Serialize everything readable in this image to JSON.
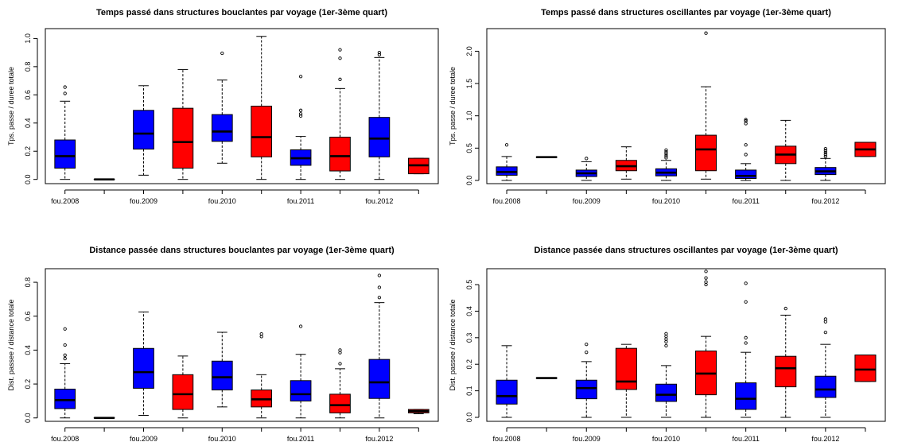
{
  "chart_data": [
    {
      "type": "boxplot",
      "title": "Temps passé dans structures bouclantes par voyage (1er-3ème quart)",
      "ylabel": "Tps. passe / duree totale",
      "ylim": [
        -0.03,
        1.07
      ],
      "yticks": [
        0.0,
        0.2,
        0.4,
        0.6,
        0.8,
        1.0
      ],
      "yticklabels": [
        "0.0",
        "0.2",
        "0.4",
        "0.6",
        "0.8",
        "1.0"
      ],
      "xticklabels": [
        "fou.2008",
        "",
        "fou.2009",
        "",
        "fou.2010",
        "",
        "fou.2011",
        "",
        "fou.2012",
        ""
      ],
      "boxes": [
        {
          "color": "#0000ff",
          "lw": 0.0,
          "q1": 0.08,
          "med": 0.165,
          "q3": 0.28,
          "uw": 0.555,
          "out": [
            0.61,
            0.655
          ]
        },
        {
          "color": "#0000ff",
          "lw": 0.0,
          "q1": 0.0,
          "med": 0.0,
          "q3": 0.0,
          "uw": 0.0,
          "out": []
        },
        {
          "color": "#0000ff",
          "lw": 0.03,
          "q1": 0.215,
          "med": 0.325,
          "q3": 0.49,
          "uw": 0.665,
          "out": []
        },
        {
          "color": "#ff0000",
          "lw": 0.0,
          "q1": 0.08,
          "med": 0.265,
          "q3": 0.505,
          "uw": 0.78,
          "out": []
        },
        {
          "color": "#0000ff",
          "lw": 0.115,
          "q1": 0.27,
          "med": 0.34,
          "q3": 0.46,
          "uw": 0.705,
          "out": [
            0.895
          ]
        },
        {
          "color": "#ff0000",
          "lw": 0.0,
          "q1": 0.16,
          "med": 0.3,
          "q3": 0.52,
          "uw": 1.015,
          "out": []
        },
        {
          "color": "#0000ff",
          "lw": 0.0,
          "q1": 0.1,
          "med": 0.15,
          "q3": 0.21,
          "uw": 0.305,
          "out": [
            0.45,
            0.465,
            0.49,
            0.73
          ]
        },
        {
          "color": "#ff0000",
          "lw": 0.0,
          "q1": 0.06,
          "med": 0.165,
          "q3": 0.3,
          "uw": 0.645,
          "out": [
            0.71,
            0.86,
            0.92
          ]
        },
        {
          "color": "#0000ff",
          "lw": 0.0,
          "q1": 0.16,
          "med": 0.29,
          "q3": 0.44,
          "uw": 0.865,
          "out": [
            0.885,
            0.9
          ]
        },
        {
          "color": "#ff0000",
          "lw": 0.04,
          "q1": 0.04,
          "med": 0.1,
          "q3": 0.15,
          "uw": 0.15,
          "out": []
        }
      ]
    },
    {
      "type": "boxplot",
      "title": "Temps passé dans structures oscillantes par voyage (1er-3ème quart)",
      "ylabel": "Tps. passe / duree totale",
      "ylim": [
        -0.05,
        2.35
      ],
      "yticks": [
        0.0,
        0.5,
        1.0,
        1.5,
        2.0
      ],
      "yticklabels": [
        "0.0",
        "0.5",
        "1.0",
        "1.5",
        "2.0"
      ],
      "xticklabels": [
        "fou.2008",
        "",
        "fou.2009",
        "",
        "fou.2010",
        "",
        "fou.2011",
        "",
        "fou.2012",
        ""
      ],
      "boxes": [
        {
          "color": "#0000ff",
          "lw": 0.0,
          "q1": 0.08,
          "med": 0.13,
          "q3": 0.21,
          "uw": 0.37,
          "out": [
            0.55
          ]
        },
        {
          "color": "#0000ff",
          "lw": 0.36,
          "q1": 0.36,
          "med": 0.36,
          "q3": 0.36,
          "uw": 0.36,
          "out": []
        },
        {
          "color": "#0000ff",
          "lw": 0.0,
          "q1": 0.06,
          "med": 0.11,
          "q3": 0.16,
          "uw": 0.29,
          "out": [
            0.34
          ]
        },
        {
          "color": "#ff0000",
          "lw": 0.02,
          "q1": 0.15,
          "med": 0.22,
          "q3": 0.31,
          "uw": 0.52,
          "out": []
        },
        {
          "color": "#0000ff",
          "lw": 0.0,
          "q1": 0.07,
          "med": 0.12,
          "q3": 0.18,
          "uw": 0.31,
          "out": [
            0.35,
            0.38,
            0.41,
            0.44,
            0.47
          ]
        },
        {
          "color": "#ff0000",
          "lw": 0.02,
          "q1": 0.15,
          "med": 0.48,
          "q3": 0.7,
          "uw": 1.45,
          "out": [
            2.28
          ]
        },
        {
          "color": "#0000ff",
          "lw": 0.0,
          "q1": 0.03,
          "med": 0.07,
          "q3": 0.16,
          "uw": 0.26,
          "out": [
            0.4,
            0.55,
            0.88,
            0.92,
            0.94
          ]
        },
        {
          "color": "#ff0000",
          "lw": 0.0,
          "q1": 0.26,
          "med": 0.4,
          "q3": 0.53,
          "uw": 0.93,
          "out": []
        },
        {
          "color": "#0000ff",
          "lw": 0.0,
          "q1": 0.09,
          "med": 0.14,
          "q3": 0.2,
          "uw": 0.34,
          "out": [
            0.37,
            0.4,
            0.43,
            0.46,
            0.49
          ]
        },
        {
          "color": "#ff0000",
          "lw": 0.37,
          "q1": 0.37,
          "med": 0.48,
          "q3": 0.59,
          "uw": 0.59,
          "out": []
        }
      ]
    },
    {
      "type": "boxplot",
      "title": "Distance passée dans structures bouclantes par voyage (1er-3ème quart)",
      "ylabel": "Dist. passee / distance totale",
      "ylim": [
        -0.02,
        0.88
      ],
      "yticks": [
        0.0,
        0.2,
        0.4,
        0.6,
        0.8
      ],
      "yticklabels": [
        "0.0",
        "0.2",
        "0.4",
        "0.6",
        "0.8"
      ],
      "xticklabels": [
        "fou.2008",
        "",
        "fou.2009",
        "",
        "fou.2010",
        "",
        "fou.2011",
        "",
        "fou.2012",
        ""
      ],
      "boxes": [
        {
          "color": "#0000ff",
          "lw": 0.0,
          "q1": 0.055,
          "med": 0.105,
          "q3": 0.17,
          "uw": 0.32,
          "out": [
            0.35,
            0.37,
            0.43,
            0.525
          ]
        },
        {
          "color": "#0000ff",
          "lw": 0.0,
          "q1": 0.0,
          "med": 0.0,
          "q3": 0.0,
          "uw": 0.0,
          "out": []
        },
        {
          "color": "#0000ff",
          "lw": 0.015,
          "q1": 0.175,
          "med": 0.27,
          "q3": 0.41,
          "uw": 0.625,
          "out": []
        },
        {
          "color": "#ff0000",
          "lw": 0.0,
          "q1": 0.05,
          "med": 0.14,
          "q3": 0.255,
          "uw": 0.365,
          "out": []
        },
        {
          "color": "#0000ff",
          "lw": 0.065,
          "q1": 0.165,
          "med": 0.24,
          "q3": 0.335,
          "uw": 0.505,
          "out": []
        },
        {
          "color": "#ff0000",
          "lw": 0.0,
          "q1": 0.065,
          "med": 0.11,
          "q3": 0.165,
          "uw": 0.255,
          "out": [
            0.48,
            0.495
          ]
        },
        {
          "color": "#0000ff",
          "lw": 0.0,
          "q1": 0.1,
          "med": 0.14,
          "q3": 0.22,
          "uw": 0.375,
          "out": [
            0.54
          ]
        },
        {
          "color": "#ff0000",
          "lw": 0.0,
          "q1": 0.03,
          "med": 0.075,
          "q3": 0.14,
          "uw": 0.29,
          "out": [
            0.32,
            0.385,
            0.4
          ]
        },
        {
          "color": "#0000ff",
          "lw": 0.0,
          "q1": 0.115,
          "med": 0.21,
          "q3": 0.345,
          "uw": 0.68,
          "out": [
            0.71,
            0.77,
            0.84
          ]
        },
        {
          "color": "#ff0000",
          "lw": 0.025,
          "q1": 0.03,
          "med": 0.04,
          "q3": 0.05,
          "uw": 0.05,
          "out": []
        }
      ]
    },
    {
      "type": "boxplot",
      "title": "Distance passée dans structures oscillantes par voyage (1er-3ème quart)",
      "ylabel": "Dist. passee / distance totale",
      "ylim": [
        -0.015,
        0.56
      ],
      "yticks": [
        0.0,
        0.1,
        0.2,
        0.3,
        0.4,
        0.5
      ],
      "yticklabels": [
        "0.0",
        "0.1",
        "0.2",
        "0.3",
        "0.4",
        "0.5"
      ],
      "xticklabels": [
        "fou.2008",
        "",
        "fou.2009",
        "",
        "fou.2010",
        "",
        "fou.2011",
        "",
        "fou.2012",
        ""
      ],
      "boxes": [
        {
          "color": "#0000ff",
          "lw": 0.0,
          "q1": 0.05,
          "med": 0.08,
          "q3": 0.14,
          "uw": 0.27,
          "out": []
        },
        {
          "color": "#0000ff",
          "lw": 0.148,
          "q1": 0.148,
          "med": 0.148,
          "q3": 0.148,
          "uw": 0.148,
          "out": []
        },
        {
          "color": "#0000ff",
          "lw": 0.0,
          "q1": 0.07,
          "med": 0.11,
          "q3": 0.14,
          "uw": 0.21,
          "out": [
            0.245,
            0.275
          ]
        },
        {
          "color": "#ff0000",
          "lw": 0.0,
          "q1": 0.105,
          "med": 0.135,
          "q3": 0.26,
          "uw": 0.275,
          "out": []
        },
        {
          "color": "#0000ff",
          "lw": 0.0,
          "q1": 0.06,
          "med": 0.085,
          "q3": 0.125,
          "uw": 0.195,
          "out": [
            0.27,
            0.285,
            0.295,
            0.305,
            0.315
          ]
        },
        {
          "color": "#ff0000",
          "lw": 0.0,
          "q1": 0.085,
          "med": 0.165,
          "q3": 0.25,
          "uw": 0.305,
          "out": [
            0.5,
            0.51,
            0.525,
            0.55
          ]
        },
        {
          "color": "#0000ff",
          "lw": 0.0,
          "q1": 0.03,
          "med": 0.07,
          "q3": 0.13,
          "uw": 0.245,
          "out": [
            0.28,
            0.3,
            0.435,
            0.505
          ]
        },
        {
          "color": "#ff0000",
          "lw": 0.0,
          "q1": 0.115,
          "med": 0.185,
          "q3": 0.23,
          "uw": 0.385,
          "out": [
            0.41
          ]
        },
        {
          "color": "#0000ff",
          "lw": 0.0,
          "q1": 0.075,
          "med": 0.105,
          "q3": 0.155,
          "uw": 0.275,
          "out": [
            0.32,
            0.36,
            0.37
          ]
        },
        {
          "color": "#ff0000",
          "lw": 0.135,
          "q1": 0.135,
          "med": 0.18,
          "q3": 0.235,
          "uw": 0.235,
          "out": []
        }
      ]
    }
  ]
}
